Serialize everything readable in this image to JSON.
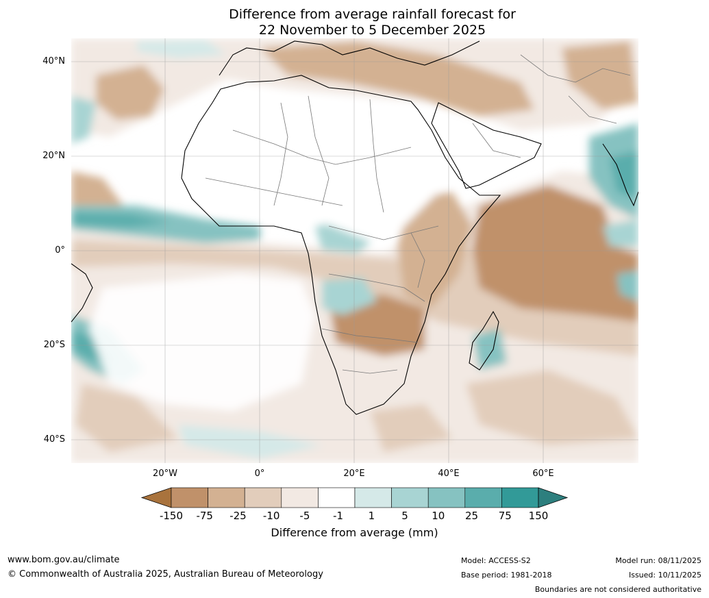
{
  "title_line1": "Difference from average rainfall forecast for",
  "title_line2": "22 November to 5 December 2025",
  "lat_labels": [
    "40°N",
    "20°N",
    "0°",
    "20°S",
    "40°S"
  ],
  "lon_labels": [
    "20°W",
    "0°",
    "20°E",
    "40°E",
    "60°E"
  ],
  "legend": {
    "ticks": [
      "-150",
      "-75",
      "-25",
      "-10",
      "-5",
      "-1",
      "1",
      "5",
      "10",
      "25",
      "75",
      "150"
    ],
    "colors": [
      "#a9733d",
      "#c0916a",
      "#d3b192",
      "#e2cdbb",
      "#f2e9e3",
      "#ffffff",
      "#d5e9e8",
      "#a8d4d3",
      "#86c2c1",
      "#5aadac",
      "#329a98",
      "#2d7f7e"
    ],
    "title": "Difference from average (mm)"
  },
  "footer": {
    "url": "www.bom.gov.au/climate",
    "copyright": "© Commonwealth of Australia 2025, Australian Bureau of Meteorology",
    "model": "Model: ACCESS-S2",
    "base_period": "Base period: 1981-2018",
    "model_run": "Model run: 08/11/2025",
    "issued": "Issued: 10/11/2025",
    "disclaimer": "Boundaries are not considered authoritative"
  }
}
